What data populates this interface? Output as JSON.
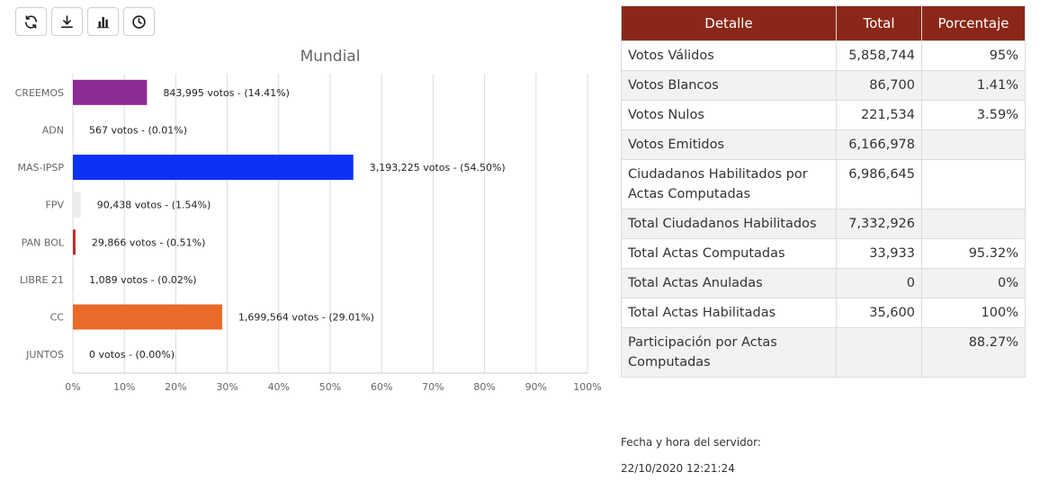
{
  "toolbar": {
    "buttons": [
      {
        "icon": "refresh-icon"
      },
      {
        "icon": "download-icon"
      },
      {
        "icon": "bar-chart-icon"
      },
      {
        "icon": "clock-icon"
      }
    ]
  },
  "chart_data": {
    "type": "bar",
    "orientation": "horizontal",
    "title": "Mundial",
    "categories": [
      "CREEMOS",
      "ADN",
      "MAS-IPSP",
      "FPV",
      "PAN BOL",
      "LIBRE 21",
      "CC",
      "JUNTOS"
    ],
    "values": [
      14.41,
      0.01,
      54.5,
      1.54,
      0.51,
      0.02,
      29.01,
      0.0
    ],
    "votes": [
      843995,
      567,
      3193225,
      90438,
      29866,
      1089,
      1699564,
      0
    ],
    "data_labels": [
      "843,995 votos - (14.41%)",
      "567 votos - (0.01%)",
      "3,193,225 votos - (54.50%)",
      "90,438 votos - (1.54%)",
      "29,866 votos - (0.51%)",
      "1,089 votos - (0.02%)",
      "1,699,564 votos - (29.01%)",
      "0 votos - (0.00%)"
    ],
    "colors": [
      "#8e2a93",
      "#d33c3c",
      "#0b32f5",
      "#ececec",
      "#c1272d",
      "#2f9e4a",
      "#ea6a2a",
      "#5a9bd5"
    ],
    "xlim": [
      0,
      100
    ],
    "x_ticks": [
      "0%",
      "10%",
      "20%",
      "30%",
      "40%",
      "50%",
      "60%",
      "70%",
      "80%",
      "90%",
      "100%"
    ],
    "grid": true
  },
  "table": {
    "headers": [
      "Detalle",
      "Total",
      "Porcentaje"
    ],
    "rows": [
      {
        "detalle": "Votos Válidos",
        "total": "5,858,744",
        "porcentaje": "95%"
      },
      {
        "detalle": "Votos Blancos",
        "total": "86,700",
        "porcentaje": "1.41%"
      },
      {
        "detalle": "Votos Nulos",
        "total": "221,534",
        "porcentaje": "3.59%"
      },
      {
        "detalle": "Votos Emitidos",
        "total": "6,166,978",
        "porcentaje": ""
      },
      {
        "detalle": "Ciudadanos Habilitados por Actas Computadas",
        "total": "6,986,645",
        "porcentaje": ""
      },
      {
        "detalle": "Total Ciudadanos Habilitados",
        "total": "7,332,926",
        "porcentaje": ""
      },
      {
        "detalle": "Total Actas Computadas",
        "total": "33,933",
        "porcentaje": "95.32%"
      },
      {
        "detalle": "Total Actas Anuladas",
        "total": "0",
        "porcentaje": "0%"
      },
      {
        "detalle": "Total Actas Habilitadas",
        "total": "35,600",
        "porcentaje": "100%"
      },
      {
        "detalle": "Participación por Actas Computadas",
        "total": "",
        "porcentaje": "88.27%"
      }
    ]
  },
  "server": {
    "label": "Fecha y hora del servidor:",
    "datetime": "22/10/2020 12:21:24"
  },
  "colors": {
    "header_bg": "#8b2718"
  }
}
